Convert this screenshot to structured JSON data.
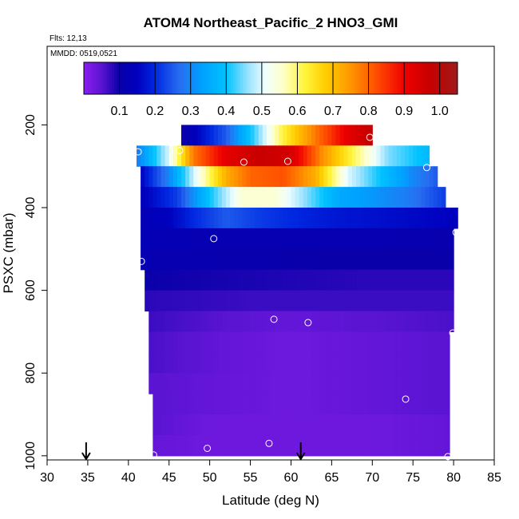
{
  "title": "ATOM4 Northeast_Pacific_2 HNO3_GMI",
  "flights_label": "Flts: 12,13",
  "mmdd_label": "MMDD: 0519,0521",
  "chart_data": {
    "type": "heatmap",
    "title": "ATOM4 Northeast_Pacific_2 HNO3_GMI",
    "xlabel": "Latitude (deg N)",
    "ylabel": "PSXC (mbar)",
    "xlim": [
      30,
      85
    ],
    "ylim": [
      1010,
      10
    ],
    "x_ticks": [
      "30",
      "35",
      "40",
      "45",
      "50",
      "55",
      "60",
      "65",
      "70",
      "75",
      "80",
      "85"
    ],
    "y_ticks": [
      "200",
      "400",
      "600",
      "800",
      "1000"
    ],
    "y_tick_values": [
      200,
      400,
      600,
      800,
      1000
    ],
    "colorbar": {
      "range": [
        0,
        1.05
      ],
      "ticks": [
        "0.1",
        "0.2",
        "0.3",
        "0.4",
        "0.5",
        "0.6",
        "0.7",
        "0.8",
        "0.9",
        "1.0"
      ],
      "tick_values": [
        0.1,
        0.2,
        0.3,
        0.4,
        0.5,
        0.6,
        0.7,
        0.8,
        0.9,
        1.0
      ]
    },
    "bands": [
      {
        "p0": 200,
        "p1": 250,
        "lat0": 46.5,
        "lat1": 70.0,
        "profile": [
          [
            46.5,
            0.1
          ],
          [
            52,
            0.25
          ],
          [
            56,
            0.45
          ],
          [
            59,
            0.62
          ],
          [
            63,
            0.78
          ],
          [
            67,
            0.92
          ],
          [
            70,
            0.98
          ]
        ]
      },
      {
        "p0": 250,
        "p1": 300,
        "lat0": 41.0,
        "lat1": 77.0,
        "profile": [
          [
            41,
            0.28
          ],
          [
            45,
            0.5
          ],
          [
            48,
            0.78
          ],
          [
            52,
            0.92
          ],
          [
            56,
            0.97
          ],
          [
            60,
            0.95
          ],
          [
            64,
            0.75
          ],
          [
            68,
            0.6
          ],
          [
            72,
            0.45
          ],
          [
            77,
            0.38
          ]
        ]
      },
      {
        "p0": 300,
        "p1": 350,
        "lat0": 41.5,
        "lat1": 78.0,
        "profile": [
          [
            41.5,
            0.15
          ],
          [
            45,
            0.3
          ],
          [
            49,
            0.55
          ],
          [
            52,
            0.72
          ],
          [
            55,
            0.8
          ],
          [
            59,
            0.82
          ],
          [
            63,
            0.72
          ],
          [
            67,
            0.5
          ],
          [
            71,
            0.4
          ],
          [
            75,
            0.3
          ],
          [
            78,
            0.25
          ]
        ]
      },
      {
        "p0": 350,
        "p1": 400,
        "lat0": 41.5,
        "lat1": 79.0,
        "profile": [
          [
            41.5,
            0.14
          ],
          [
            46,
            0.22
          ],
          [
            50,
            0.4
          ],
          [
            54,
            0.55
          ],
          [
            58,
            0.55
          ],
          [
            62,
            0.45
          ],
          [
            66,
            0.35
          ],
          [
            70,
            0.32
          ],
          [
            75,
            0.28
          ],
          [
            79,
            0.22
          ]
        ]
      },
      {
        "p0": 400,
        "p1": 450,
        "lat0": 41.5,
        "lat1": 80.5,
        "profile": [
          [
            41.5,
            0.13
          ],
          [
            45,
            0.15
          ],
          [
            48,
            0.2
          ],
          [
            52,
            0.25
          ],
          [
            56,
            0.22
          ],
          [
            60,
            0.2
          ],
          [
            65,
            0.18
          ],
          [
            70,
            0.17
          ],
          [
            75,
            0.16
          ],
          [
            80.5,
            0.15
          ]
        ]
      },
      {
        "p0": 450,
        "p1": 500,
        "lat0": 41.5,
        "lat1": 80.0,
        "profile": [
          [
            41.5,
            0.13
          ],
          [
            50,
            0.12
          ],
          [
            60,
            0.12
          ],
          [
            70,
            0.12
          ],
          [
            80,
            0.11
          ]
        ]
      },
      {
        "p0": 500,
        "p1": 550,
        "lat0": 41.5,
        "lat1": 80.0,
        "profile": [
          [
            41.5,
            0.12
          ],
          [
            55,
            0.11
          ],
          [
            65,
            0.1
          ],
          [
            80,
            0.1
          ]
        ]
      },
      {
        "p0": 550,
        "p1": 600,
        "lat0": 42.0,
        "lat1": 80.0,
        "profile": [
          [
            42,
            0.1
          ],
          [
            55,
            0.09
          ],
          [
            70,
            0.08
          ],
          [
            80,
            0.08
          ]
        ]
      },
      {
        "p0": 600,
        "p1": 650,
        "lat0": 42.0,
        "lat1": 80.0,
        "profile": [
          [
            42,
            0.08
          ],
          [
            55,
            0.07
          ],
          [
            70,
            0.07
          ],
          [
            80,
            0.07
          ]
        ]
      },
      {
        "p0": 650,
        "p1": 700,
        "lat0": 42.5,
        "lat1": 80.0,
        "profile": [
          [
            42.5,
            0.07
          ],
          [
            52,
            0.05
          ],
          [
            60,
            0.04
          ],
          [
            70,
            0.05
          ],
          [
            80,
            0.06
          ]
        ]
      },
      {
        "p0": 700,
        "p1": 750,
        "lat0": 42.5,
        "lat1": 79.5,
        "profile": [
          [
            42.5,
            0.06
          ],
          [
            52,
            0.04
          ],
          [
            60,
            0.03
          ],
          [
            70,
            0.04
          ],
          [
            79.5,
            0.05
          ]
        ]
      },
      {
        "p0": 750,
        "p1": 800,
        "lat0": 42.5,
        "lat1": 79.5,
        "profile": [
          [
            42.5,
            0.06
          ],
          [
            52,
            0.04
          ],
          [
            60,
            0.03
          ],
          [
            70,
            0.04
          ],
          [
            79.5,
            0.05
          ]
        ]
      },
      {
        "p0": 800,
        "p1": 850,
        "lat0": 42.5,
        "lat1": 79.5,
        "profile": [
          [
            42.5,
            0.05
          ],
          [
            50,
            0.04
          ],
          [
            60,
            0.03
          ],
          [
            70,
            0.04
          ],
          [
            79.5,
            0.05
          ]
        ]
      },
      {
        "p0": 850,
        "p1": 900,
        "lat0": 43.0,
        "lat1": 79.5,
        "profile": [
          [
            43,
            0.05
          ],
          [
            50,
            0.04
          ],
          [
            60,
            0.03
          ],
          [
            70,
            0.04
          ],
          [
            79.5,
            0.05
          ]
        ]
      },
      {
        "p0": 900,
        "p1": 950,
        "lat0": 43.0,
        "lat1": 79.5,
        "profile": [
          [
            43,
            0.05
          ],
          [
            50,
            0.03
          ],
          [
            60,
            0.03
          ],
          [
            70,
            0.03
          ],
          [
            79.5,
            0.04
          ]
        ]
      },
      {
        "p0": 950,
        "p1": 1000,
        "lat0": 43.0,
        "lat1": 79.5,
        "profile": [
          [
            43,
            0.04
          ],
          [
            50,
            0.03
          ],
          [
            60,
            0.03
          ],
          [
            70,
            0.03
          ],
          [
            79.5,
            0.04
          ]
        ]
      }
    ],
    "sample_points": [
      {
        "lat": 69.7,
        "p": 230
      },
      {
        "lat": 41.2,
        "p": 265
      },
      {
        "lat": 46.3,
        "p": 262
      },
      {
        "lat": 54.2,
        "p": 290
      },
      {
        "lat": 59.6,
        "p": 288
      },
      {
        "lat": 76.7,
        "p": 303
      },
      {
        "lat": 80.3,
        "p": 460
      },
      {
        "lat": 50.5,
        "p": 475
      },
      {
        "lat": 41.6,
        "p": 530
      },
      {
        "lat": 57.9,
        "p": 670
      },
      {
        "lat": 62.1,
        "p": 678
      },
      {
        "lat": 79.9,
        "p": 703
      },
      {
        "lat": 74.1,
        "p": 863
      },
      {
        "lat": 57.3,
        "p": 970
      },
      {
        "lat": 49.7,
        "p": 982
      },
      {
        "lat": 43.1,
        "p": 998
      },
      {
        "lat": 79.3,
        "p": 1002
      }
    ],
    "arrows": [
      {
        "lat": 34.8
      },
      {
        "lat": 61.2
      }
    ]
  }
}
